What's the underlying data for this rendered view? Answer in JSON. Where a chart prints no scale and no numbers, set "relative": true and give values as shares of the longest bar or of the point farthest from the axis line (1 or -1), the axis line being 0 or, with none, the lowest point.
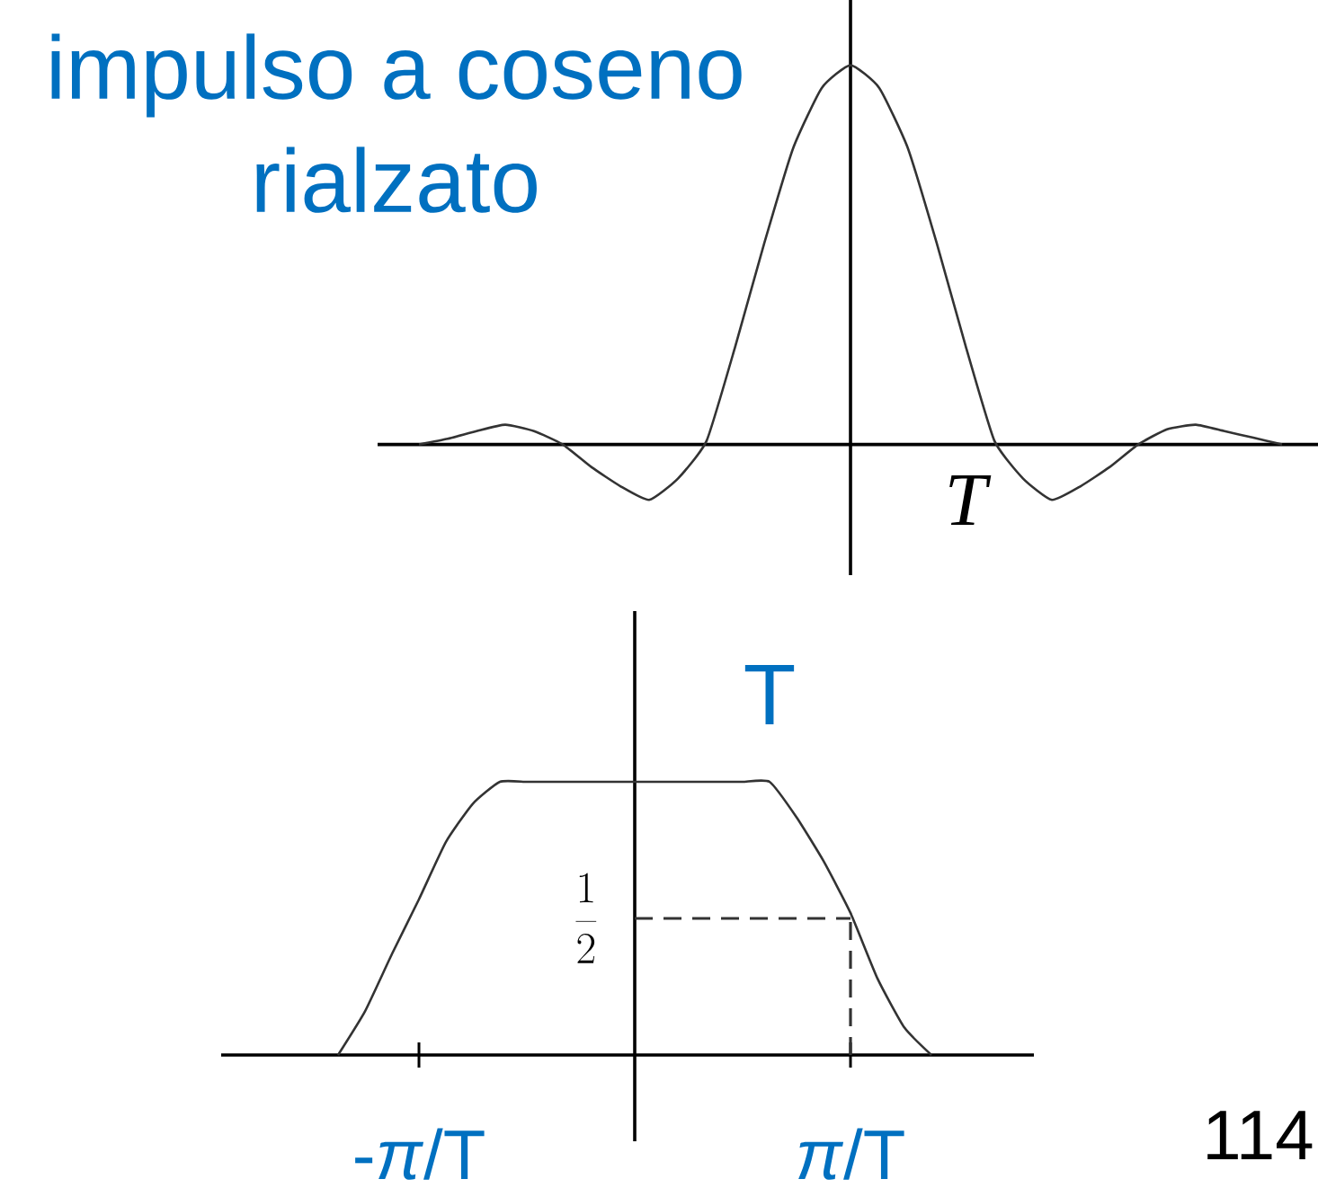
{
  "chart_data": [
    {
      "type": "line",
      "title": "impulso a coseno rialzato",
      "relative": true,
      "categories": [
        null,
        null,
        null,
        null,
        null,
        null,
        null,
        null,
        null,
        null,
        null,
        null,
        null,
        null,
        null,
        null,
        null,
        null,
        null,
        null,
        null,
        null,
        null,
        null,
        null,
        null,
        null,
        null,
        null,
        null,
        null
      ],
      "series": [
        {
          "color": "#333333",
          "values": [
            0,
            0.015,
            0.035,
            0.052,
            0.035,
            0,
            -0.06,
            -0.11,
            -0.146,
            -0.09,
            0.01,
            0.26,
            0.53,
            0.78,
            0.94,
            1,
            0.94,
            0.78,
            0.53,
            0.26,
            0.01,
            -0.09,
            -0.146,
            -0.11,
            -0.06,
            0,
            0.04,
            0.052,
            0.035,
            0.018,
            0
          ]
        }
      ],
      "annotations": [
        "T"
      ]
    },
    {
      "type": "line",
      "relative": true,
      "categories": [
        null,
        null,
        null,
        "-*π*/T",
        null,
        null,
        null,
        null,
        null,
        null,
        null,
        null,
        null,
        null,
        null,
        null,
        null,
        null,
        null,
        "*π*/T",
        null,
        null,
        null
      ],
      "series": [
        {
          "color": "#333333",
          "values": [
            0,
            0.16,
            0.37,
            0.57,
            0.78,
            0.92,
            1,
            1,
            1,
            1,
            1,
            1,
            1,
            1,
            1,
            1,
            1,
            0.87,
            0.71,
            0.52,
            0.28,
            0.1,
            0
          ]
        }
      ],
      "ref_lines": [
        {
          "axis": "y",
          "value": 0.5,
          "label": "\\frac{1}{2}",
          "line_style": "dashed",
          "color": "#333333"
        },
        {
          "axis": "x",
          "value": "*π*/T",
          "line_style": "dashed",
          "color": "#333333"
        }
      ],
      "annotations": [
        {
          "text": "T",
          "y": 1
        },
        "114"
      ]
    }
  ]
}
